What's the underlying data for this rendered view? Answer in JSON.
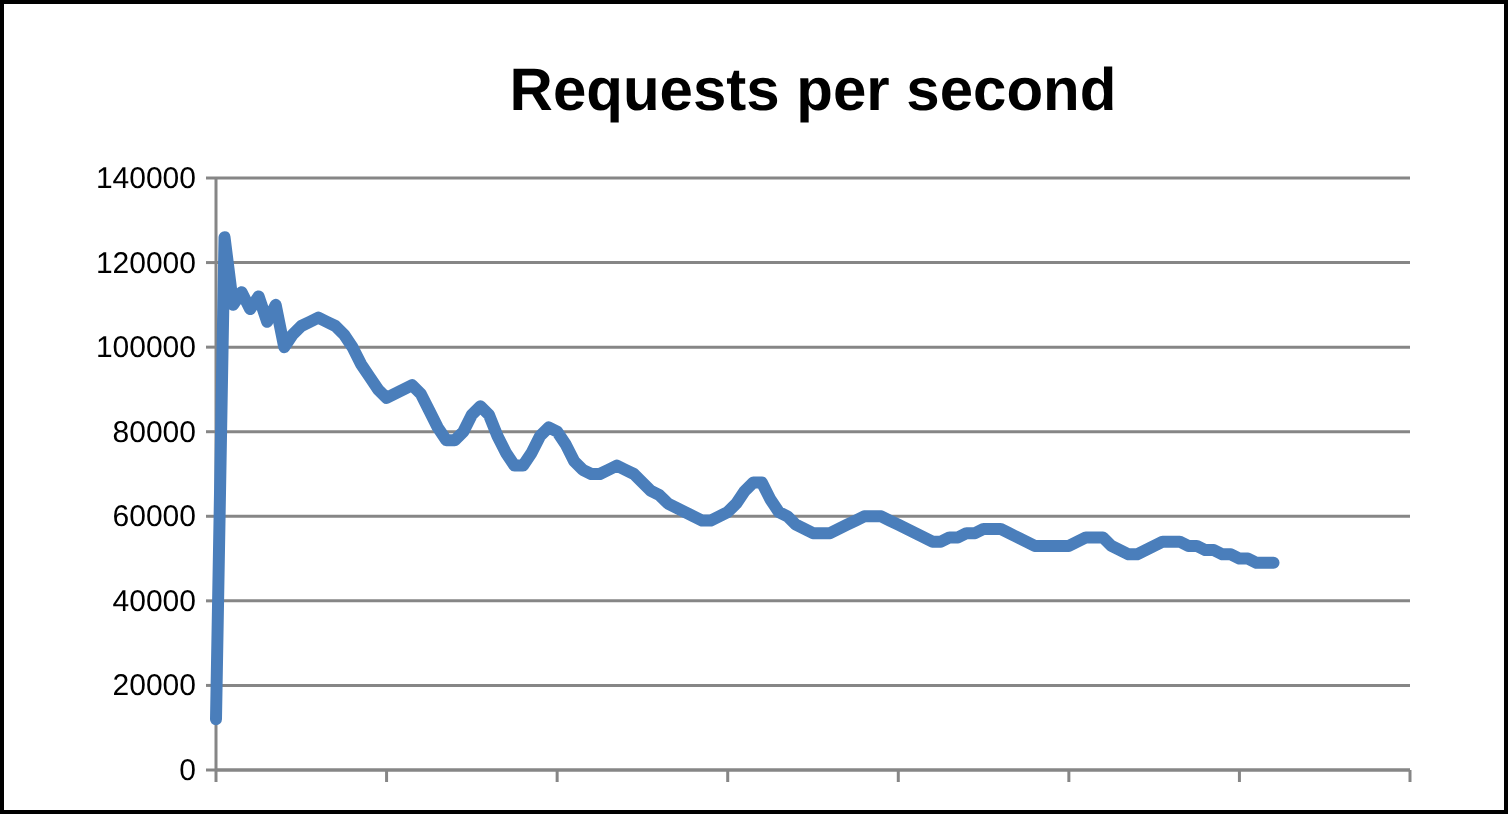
{
  "chart_data": {
    "type": "line",
    "title": "Requests per second",
    "categories": [
      null,
      null,
      null,
      null,
      null,
      null,
      null,
      null,
      null,
      null,
      null,
      null,
      null,
      null,
      null,
      null,
      null,
      null,
      null,
      null,
      null,
      null,
      null,
      null,
      null,
      null,
      null,
      null,
      null,
      null,
      null,
      null,
      null,
      null,
      null,
      null,
      null,
      null,
      null,
      null,
      null,
      null,
      null,
      null,
      null,
      null,
      null,
      null,
      null,
      null,
      null,
      null,
      null,
      null,
      null,
      null,
      null,
      null,
      null,
      null,
      null,
      null,
      null,
      null,
      null,
      null,
      null,
      null,
      null,
      null,
      null,
      null,
      null,
      null,
      null,
      null,
      null,
      null,
      null,
      null,
      null,
      null,
      null,
      null,
      null,
      null,
      null,
      null,
      null,
      null,
      null,
      null,
      null,
      null,
      null,
      null,
      null,
      null,
      null,
      null,
      null,
      null,
      null,
      null,
      null,
      null,
      null,
      null,
      null,
      null,
      null,
      null,
      null,
      null,
      null,
      null,
      null,
      null,
      null,
      null,
      null,
      null,
      null,
      null,
      null,
      null,
      null,
      null,
      null,
      null,
      null,
      null,
      null,
      null,
      null,
      null,
      null,
      null,
      null,
      null,
      null
    ],
    "series": [
      {
        "color": "#4a7ebb",
        "values": [
          12000,
          126000,
          110000,
          113000,
          109000,
          112000,
          106000,
          110000,
          100000,
          103000,
          105000,
          106000,
          107000,
          106000,
          105000,
          103000,
          100000,
          96000,
          93000,
          90000,
          88000,
          89000,
          90000,
          91000,
          89000,
          85000,
          81000,
          78000,
          78000,
          80000,
          84000,
          86000,
          84000,
          79000,
          75000,
          72000,
          72000,
          75000,
          79000,
          81000,
          80000,
          77000,
          73000,
          71000,
          70000,
          70000,
          71000,
          72000,
          71000,
          70000,
          68000,
          66000,
          65000,
          63000,
          62000,
          61000,
          60000,
          59000,
          59000,
          60000,
          61000,
          63000,
          66000,
          68000,
          68000,
          64000,
          61000,
          60000,
          58000,
          57000,
          56000,
          56000,
          56000,
          57000,
          58000,
          59000,
          60000,
          60000,
          60000,
          59000,
          58000,
          57000,
          56000,
          55000,
          54000,
          54000,
          55000,
          55000,
          56000,
          56000,
          57000,
          57000,
          57000,
          56000,
          55000,
          54000,
          53000,
          53000,
          53000,
          53000,
          53000,
          54000,
          55000,
          55000,
          55000,
          53000,
          52000,
          51000,
          51000,
          52000,
          53000,
          54000,
          54000,
          54000,
          53000,
          53000,
          52000,
          52000,
          51000,
          51000,
          50000,
          50000,
          49000,
          49000,
          49000,
          null,
          null,
          null,
          null,
          null,
          null,
          null,
          null,
          null,
          null,
          null,
          null,
          null,
          null,
          null,
          null
        ]
      }
    ],
    "ylim": [
      0,
      140000
    ],
    "yticks": [
      0,
      20000,
      40000,
      60000,
      80000,
      100000,
      120000,
      140000
    ],
    "grid": "y",
    "marker": "none",
    "line_style": "solid"
  }
}
